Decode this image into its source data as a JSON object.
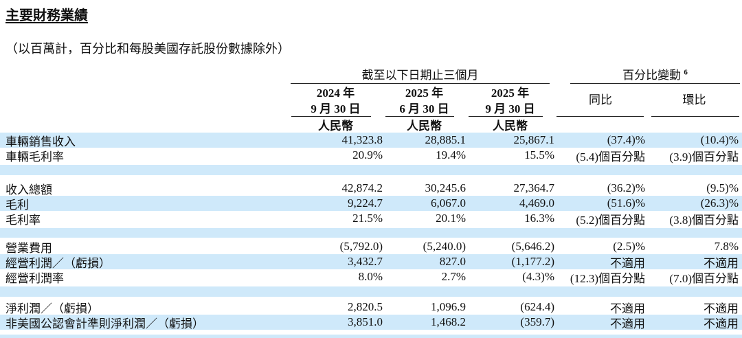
{
  "page": {
    "title": "主要財務業績",
    "subtitle": "（以百萬計，百分比和每股美國存託股份數據除外）"
  },
  "table": {
    "period_group_label": "截至以下日期止三個月",
    "change_group_label": "百分比變動",
    "change_group_footnote": "6",
    "period_columns": [
      {
        "year": "2024 年",
        "date": "9 月 30 日",
        "currency": "人民幣"
      },
      {
        "year": "2025 年",
        "date": "6 月 30 日",
        "currency": "人民幣"
      },
      {
        "year": "2025 年",
        "date": "9 月 30 日",
        "currency": "人民幣"
      }
    ],
    "change_columns": {
      "yoy": "同比",
      "qoq": "環比"
    },
    "rows": [
      {
        "label": "車輛銷售收入",
        "values": [
          "41,323.8",
          "28,885.1",
          "25,867.1",
          "(37.4)%",
          "(10.4)%"
        ]
      },
      {
        "label": "車輛毛利率",
        "values": [
          "20.9%",
          "19.4%",
          "15.5%",
          "(5.4)個百分點",
          "(3.9)個百分點"
        ]
      },
      {
        "label": "收入總額",
        "values": [
          "42,874.2",
          "30,245.6",
          "27,364.7",
          "(36.2)%",
          "(9.5)%"
        ]
      },
      {
        "label": "毛利",
        "values": [
          "9,224.7",
          "6,067.0",
          "4,469.0",
          "(51.6)%",
          "(26.3)%"
        ]
      },
      {
        "label": "毛利率",
        "values": [
          "21.5%",
          "20.1%",
          "16.3%",
          "(5.2)個百分點",
          "(3.8)個百分點"
        ]
      },
      {
        "label": "營業費用",
        "values": [
          "(5,792.0)",
          "(5,240.0)",
          "(5,646.2)",
          "(2.5)%",
          "7.8%"
        ]
      },
      {
        "label": "經營利潤／（虧損）",
        "values": [
          "3,432.7",
          "827.0",
          "(1,177.2)",
          "不適用",
          "不適用"
        ]
      },
      {
        "label": "經營利潤率",
        "values": [
          "8.0%",
          "2.7%",
          "(4.3)%",
          "(12.3)個百分點",
          "(7.0)個百分點"
        ]
      },
      {
        "label": "淨利潤／（虧損）",
        "values": [
          "2,820.5",
          "1,096.9",
          "(624.4)",
          "不適用",
          "不適用"
        ]
      },
      {
        "label": "非美國公認會計準則淨利潤／（虧損）",
        "values": [
          "3,851.0",
          "1,468.2",
          "(359.7)",
          "不適用",
          "不適用"
        ]
      }
    ]
  },
  "colors": {
    "stripe_blue": "#cfe9fa",
    "rule_black": "#222222",
    "text": "#111111"
  }
}
